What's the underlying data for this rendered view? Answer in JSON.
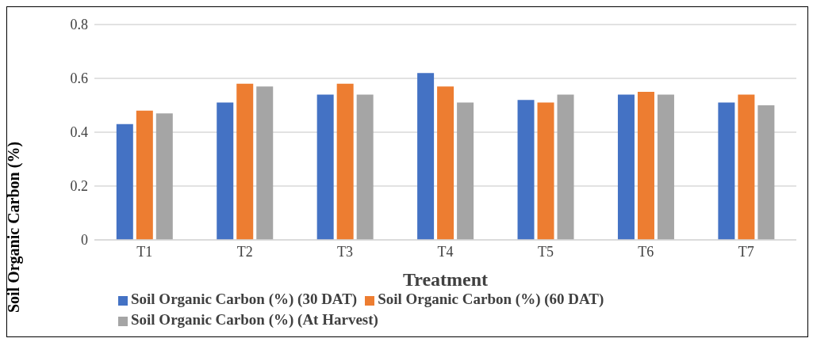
{
  "chart_data": {
    "type": "bar",
    "xlabel": "Treatment",
    "ylabel": "Soil Organic Carbon (%)",
    "categories": [
      "T1",
      "T2",
      "T3",
      "T4",
      "T5",
      "T6",
      "T7"
    ],
    "series": [
      {
        "name": "Soil Organic Carbon (%) (30 DAT)",
        "color": "#4472c4",
        "values": [
          0.43,
          0.51,
          0.54,
          0.62,
          0.52,
          0.54,
          0.51
        ]
      },
      {
        "name": "Soil Organic Carbon (%) (60 DAT)",
        "color": "#ed7d31",
        "values": [
          0.48,
          0.58,
          0.58,
          0.57,
          0.51,
          0.55,
          0.54
        ]
      },
      {
        "name": "Soil Organic Carbon (%) (At Harvest)",
        "color": "#a5a5a5",
        "values": [
          0.47,
          0.57,
          0.54,
          0.51,
          0.54,
          0.54,
          0.5
        ]
      }
    ],
    "ylim": [
      0,
      0.8
    ],
    "yticks": [
      0,
      0.2,
      0.4,
      0.6,
      0.8
    ],
    "grid": "y",
    "legend": "bottom"
  }
}
